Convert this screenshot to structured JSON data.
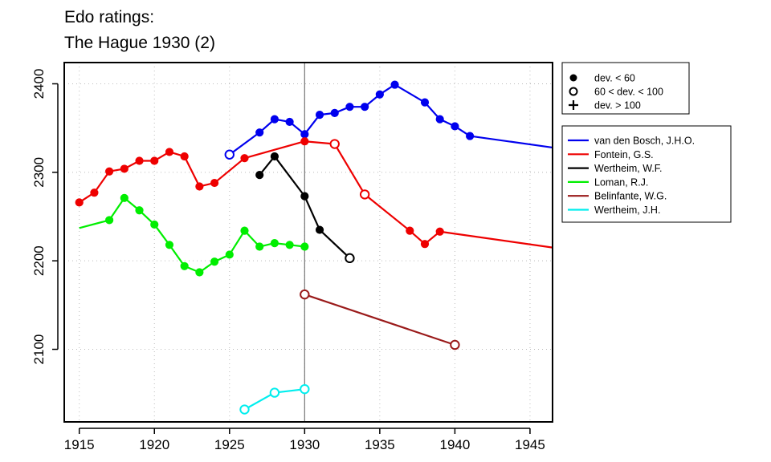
{
  "chart_data": {
    "type": "line",
    "title_lines": [
      "Edo ratings:",
      "The Hague 1930 (2)"
    ],
    "xlabel": "",
    "ylabel": "",
    "xlim": [
      1914,
      1946.5
    ],
    "ylim": [
      2018,
      2424
    ],
    "x_ticks": [
      1915,
      1920,
      1925,
      1930,
      1935,
      1940,
      1945
    ],
    "y_ticks": [
      2100,
      2200,
      2300,
      2400
    ],
    "grid": true,
    "reference_line_x": 1930,
    "marker_legend": {
      "placement": "top-right",
      "entries": [
        {
          "symbol": "filled-circle",
          "label": "dev. < 60"
        },
        {
          "symbol": "open-circle",
          "label": "60 < dev. < 100"
        },
        {
          "symbol": "plus",
          "label": "dev. > 100"
        }
      ]
    },
    "series_legend_placement": "right",
    "series": [
      {
        "name": "van den Bosch, J.H.O.",
        "color": "#0000ee",
        "points": [
          {
            "x": 1925,
            "y": 2320,
            "marker": "open"
          },
          {
            "x": 1927,
            "y": 2345,
            "marker": "filled"
          },
          {
            "x": 1928,
            "y": 2360,
            "marker": "filled"
          },
          {
            "x": 1929,
            "y": 2357,
            "marker": "filled"
          },
          {
            "x": 1930,
            "y": 2343,
            "marker": "filled"
          },
          {
            "x": 1931,
            "y": 2365,
            "marker": "filled"
          },
          {
            "x": 1932,
            "y": 2367,
            "marker": "filled"
          },
          {
            "x": 1933,
            "y": 2374,
            "marker": "filled"
          },
          {
            "x": 1934,
            "y": 2374,
            "marker": "filled"
          },
          {
            "x": 1935,
            "y": 2388,
            "marker": "filled"
          },
          {
            "x": 1936,
            "y": 2399,
            "marker": "filled"
          },
          {
            "x": 1938,
            "y": 2379,
            "marker": "filled"
          },
          {
            "x": 1939,
            "y": 2360,
            "marker": "filled"
          },
          {
            "x": 1940,
            "y": 2352,
            "marker": "filled"
          },
          {
            "x": 1941,
            "y": 2341,
            "marker": "filled"
          },
          {
            "x": 1946.5,
            "y": 2328,
            "marker": "none"
          }
        ]
      },
      {
        "name": "Fontein, G.S.",
        "color": "#ee0000",
        "points": [
          {
            "x": 1915,
            "y": 2266,
            "marker": "filled"
          },
          {
            "x": 1916,
            "y": 2277,
            "marker": "filled"
          },
          {
            "x": 1917,
            "y": 2301,
            "marker": "filled"
          },
          {
            "x": 1918,
            "y": 2304,
            "marker": "filled"
          },
          {
            "x": 1919,
            "y": 2313,
            "marker": "filled"
          },
          {
            "x": 1920,
            "y": 2313,
            "marker": "filled"
          },
          {
            "x": 1921,
            "y": 2323,
            "marker": "filled"
          },
          {
            "x": 1922,
            "y": 2318,
            "marker": "filled"
          },
          {
            "x": 1923,
            "y": 2284,
            "marker": "filled"
          },
          {
            "x": 1924,
            "y": 2288,
            "marker": "filled"
          },
          {
            "x": 1926,
            "y": 2316,
            "marker": "filled"
          },
          {
            "x": 1930,
            "y": 2335,
            "marker": "filled"
          },
          {
            "x": 1932,
            "y": 2332,
            "marker": "open"
          },
          {
            "x": 1934,
            "y": 2275,
            "marker": "open"
          },
          {
            "x": 1937,
            "y": 2234,
            "marker": "filled"
          },
          {
            "x": 1938,
            "y": 2219,
            "marker": "filled"
          },
          {
            "x": 1939,
            "y": 2233,
            "marker": "filled"
          },
          {
            "x": 1946.5,
            "y": 2215,
            "marker": "none"
          }
        ]
      },
      {
        "name": "Wertheim, W.F.",
        "color": "#000000",
        "points": [
          {
            "x": 1927,
            "y": 2297,
            "marker": "filled"
          },
          {
            "x": 1928,
            "y": 2318,
            "marker": "filled"
          },
          {
            "x": 1930,
            "y": 2273,
            "marker": "filled"
          },
          {
            "x": 1931,
            "y": 2235,
            "marker": "filled"
          },
          {
            "x": 1933,
            "y": 2203,
            "marker": "open"
          }
        ]
      },
      {
        "name": "Loman, R.J.",
        "color": "#00ee00",
        "points": [
          {
            "x": 1915,
            "y": 2237,
            "marker": "none"
          },
          {
            "x": 1917,
            "y": 2246,
            "marker": "filled"
          },
          {
            "x": 1918,
            "y": 2271,
            "marker": "filled"
          },
          {
            "x": 1919,
            "y": 2257,
            "marker": "filled"
          },
          {
            "x": 1920,
            "y": 2241,
            "marker": "filled"
          },
          {
            "x": 1921,
            "y": 2218,
            "marker": "filled"
          },
          {
            "x": 1922,
            "y": 2194,
            "marker": "filled"
          },
          {
            "x": 1923,
            "y": 2187,
            "marker": "filled"
          },
          {
            "x": 1924,
            "y": 2199,
            "marker": "filled"
          },
          {
            "x": 1925,
            "y": 2207,
            "marker": "filled"
          },
          {
            "x": 1926,
            "y": 2234,
            "marker": "filled"
          },
          {
            "x": 1927,
            "y": 2216,
            "marker": "filled"
          },
          {
            "x": 1928,
            "y": 2220,
            "marker": "filled"
          },
          {
            "x": 1929,
            "y": 2218,
            "marker": "filled"
          },
          {
            "x": 1930,
            "y": 2216,
            "marker": "filled"
          }
        ]
      },
      {
        "name": "Belinfante, W.G.",
        "color": "#9a1a1a",
        "points": [
          {
            "x": 1930,
            "y": 2162,
            "marker": "open"
          },
          {
            "x": 1940,
            "y": 2105,
            "marker": "open"
          }
        ]
      },
      {
        "name": "Wertheim, J.H.",
        "color": "#00eeee",
        "points": [
          {
            "x": 1926,
            "y": 2032,
            "marker": "open"
          },
          {
            "x": 1928,
            "y": 2051,
            "marker": "open"
          },
          {
            "x": 1930,
            "y": 2055,
            "marker": "open"
          }
        ]
      }
    ]
  }
}
